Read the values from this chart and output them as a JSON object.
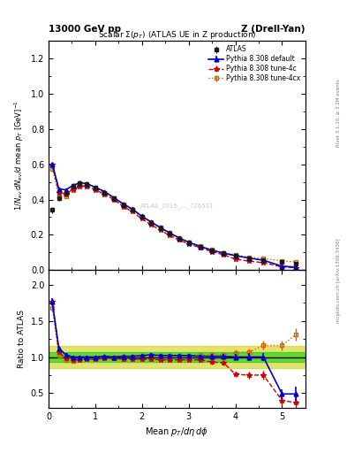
{
  "title_left": "13000 GeV pp",
  "title_right": "Z (Drell-Yan)",
  "plot_title": "Scalar $\\Sigma(p_T)$ (ATLAS UE in Z production)",
  "xlabel": "Mean $p_T/d\\eta\\,d\\phi$",
  "ylabel_main": "$1/N_{ev}\\,dN_{ev}/d$ mean $p_T$ [GeV]$^{-1}$",
  "ylabel_ratio": "Ratio to ATLAS",
  "right_label_top": "Rivet 3.1.10, ≥ 3.2M events",
  "right_label_bottom": "mcplots.cern.ch [arXiv:1306.3436]",
  "watermark": "ATLAS_2016_..._726531",
  "x_pts": [
    0.08,
    0.22,
    0.37,
    0.52,
    0.67,
    0.82,
    1.0,
    1.2,
    1.4,
    1.6,
    1.8,
    2.0,
    2.2,
    2.4,
    2.6,
    2.8,
    3.0,
    3.25,
    3.5,
    3.75,
    4.0,
    4.3,
    4.6,
    5.0,
    5.3
  ],
  "atlas_y": [
    0.34,
    0.41,
    0.44,
    0.48,
    0.495,
    0.49,
    0.47,
    0.44,
    0.41,
    0.37,
    0.34,
    0.3,
    0.265,
    0.235,
    0.205,
    0.178,
    0.155,
    0.132,
    0.112,
    0.095,
    0.082,
    0.068,
    0.056,
    0.045,
    0.035
  ],
  "atlas_yerr": [
    0.02,
    0.015,
    0.012,
    0.012,
    0.012,
    0.012,
    0.01,
    0.01,
    0.01,
    0.01,
    0.008,
    0.008,
    0.007,
    0.006,
    0.006,
    0.005,
    0.005,
    0.004,
    0.004,
    0.003,
    0.003,
    0.003,
    0.002,
    0.002,
    0.002
  ],
  "py_def_y": [
    0.6,
    0.46,
    0.455,
    0.48,
    0.495,
    0.49,
    0.47,
    0.445,
    0.41,
    0.375,
    0.345,
    0.305,
    0.272,
    0.24,
    0.21,
    0.182,
    0.158,
    0.134,
    0.113,
    0.096,
    0.082,
    0.068,
    0.056,
    0.022,
    0.017
  ],
  "py_def_yerr": [
    0.01,
    0.008,
    0.008,
    0.008,
    0.008,
    0.008,
    0.007,
    0.007,
    0.006,
    0.006,
    0.005,
    0.005,
    0.004,
    0.004,
    0.003,
    0.003,
    0.003,
    0.003,
    0.002,
    0.002,
    0.002,
    0.002,
    0.002,
    0.002,
    0.002
  ],
  "py_4c_y": [
    0.6,
    0.44,
    0.43,
    0.46,
    0.475,
    0.475,
    0.455,
    0.43,
    0.4,
    0.36,
    0.33,
    0.29,
    0.256,
    0.225,
    0.196,
    0.17,
    0.148,
    0.127,
    0.104,
    0.087,
    0.062,
    0.051,
    0.042,
    0.018,
    0.013
  ],
  "py_4c_yerr": [
    0.01,
    0.008,
    0.008,
    0.008,
    0.008,
    0.008,
    0.007,
    0.007,
    0.006,
    0.006,
    0.005,
    0.005,
    0.004,
    0.004,
    0.003,
    0.003,
    0.003,
    0.003,
    0.002,
    0.002,
    0.002,
    0.002,
    0.002,
    0.002,
    0.002
  ],
  "py_4cx_y": [
    0.575,
    0.42,
    0.42,
    0.452,
    0.478,
    0.48,
    0.462,
    0.44,
    0.41,
    0.372,
    0.342,
    0.302,
    0.27,
    0.24,
    0.21,
    0.182,
    0.158,
    0.136,
    0.115,
    0.098,
    0.087,
    0.073,
    0.065,
    0.052,
    0.046
  ],
  "py_4cx_yerr": [
    0.01,
    0.008,
    0.008,
    0.008,
    0.008,
    0.008,
    0.007,
    0.007,
    0.006,
    0.006,
    0.005,
    0.005,
    0.004,
    0.004,
    0.003,
    0.003,
    0.003,
    0.003,
    0.002,
    0.002,
    0.002,
    0.002,
    0.002,
    0.002,
    0.002
  ],
  "ratio_def": [
    1.76,
    1.12,
    1.03,
    1.0,
    1.0,
    1.0,
    1.0,
    1.01,
    1.0,
    1.01,
    1.01,
    1.02,
    1.03,
    1.02,
    1.02,
    1.02,
    1.02,
    1.01,
    1.01,
    1.01,
    1.0,
    1.0,
    1.0,
    0.49,
    0.49
  ],
  "ratio_def_err": [
    0.05,
    0.03,
    0.02,
    0.02,
    0.02,
    0.02,
    0.02,
    0.02,
    0.02,
    0.02,
    0.02,
    0.02,
    0.02,
    0.02,
    0.02,
    0.02,
    0.02,
    0.02,
    0.03,
    0.03,
    0.04,
    0.05,
    0.06,
    0.07,
    0.1
  ],
  "ratio_4c": [
    1.76,
    1.07,
    0.98,
    0.96,
    0.96,
    0.97,
    0.97,
    0.98,
    0.98,
    0.97,
    0.97,
    0.97,
    0.97,
    0.96,
    0.96,
    0.96,
    0.96,
    0.96,
    0.93,
    0.92,
    0.76,
    0.75,
    0.75,
    0.4,
    0.37
  ],
  "ratio_4c_err": [
    0.05,
    0.03,
    0.02,
    0.02,
    0.02,
    0.02,
    0.02,
    0.02,
    0.02,
    0.02,
    0.02,
    0.02,
    0.02,
    0.02,
    0.02,
    0.02,
    0.02,
    0.02,
    0.03,
    0.03,
    0.04,
    0.05,
    0.06,
    0.07,
    0.09
  ],
  "ratio_4cx": [
    1.68,
    1.02,
    0.955,
    0.94,
    0.97,
    0.98,
    0.98,
    1.0,
    1.0,
    1.01,
    1.01,
    1.01,
    1.02,
    1.02,
    1.02,
    1.02,
    1.02,
    1.03,
    1.03,
    1.03,
    1.06,
    1.07,
    1.16,
    1.16,
    1.31
  ],
  "ratio_4cx_err": [
    0.05,
    0.03,
    0.02,
    0.02,
    0.02,
    0.02,
    0.02,
    0.02,
    0.02,
    0.02,
    0.02,
    0.02,
    0.02,
    0.02,
    0.02,
    0.02,
    0.02,
    0.02,
    0.03,
    0.03,
    0.04,
    0.05,
    0.06,
    0.07,
    0.09
  ],
  "color_atlas": "#1a1a1a",
  "color_default": "#0000cc",
  "color_4c": "#cc0000",
  "color_4cx": "#cc6600",
  "band_green": "#00cc00",
  "band_yellow": "#cccc00",
  "xlim": [
    0,
    5.5
  ],
  "ylim_main": [
    0,
    1.3
  ],
  "ylim_ratio": [
    0.3,
    2.2
  ],
  "ratio_yticks": [
    0.5,
    1.0,
    1.5,
    2.0
  ]
}
